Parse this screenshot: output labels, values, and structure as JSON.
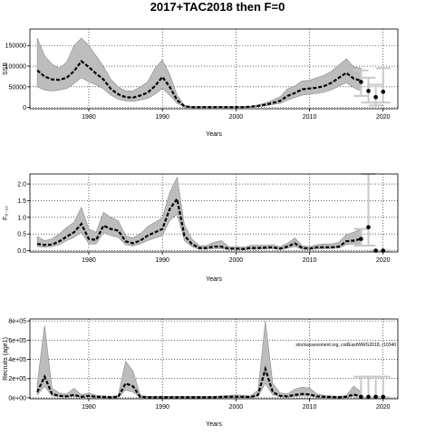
{
  "title": "2017+TAC2018 then F=0",
  "chart_data": [
    {
      "type": "line",
      "xlabel": "Years",
      "ylabel": "SSB",
      "xlim": [
        1972,
        2022
      ],
      "ylim": [
        -3000,
        190000
      ],
      "xticks": [
        1980,
        1990,
        2000,
        2010,
        2020
      ],
      "yticks": [
        0,
        50000,
        100000,
        150000
      ],
      "ytick_labels": [
        "0",
        "50000",
        "100000",
        "150000"
      ],
      "grid": true,
      "x": [
        1973,
        1974,
        1975,
        1976,
        1977,
        1978,
        1979,
        1980,
        1981,
        1982,
        1983,
        1984,
        1985,
        1986,
        1987,
        1988,
        1989,
        1990,
        1991,
        1992,
        1993,
        1994,
        1995,
        1996,
        1997,
        1998,
        1999,
        2000,
        2001,
        2002,
        2003,
        2004,
        2005,
        2006,
        2007,
        2008,
        2009,
        2010,
        2011,
        2012,
        2013,
        2014,
        2015,
        2016,
        2017
      ],
      "y": [
        90000,
        75000,
        68000,
        67000,
        72000,
        88000,
        112000,
        98000,
        82000,
        68000,
        45000,
        32000,
        25000,
        24000,
        29000,
        36000,
        52000,
        74000,
        50000,
        18000,
        3000,
        1000,
        1000,
        1000,
        1000,
        1000,
        1000,
        1000,
        1000,
        2000,
        4000,
        7000,
        11000,
        16000,
        28000,
        35000,
        44000,
        46000,
        48000,
        52000,
        60000,
        72000,
        84000,
        70000,
        65000
      ],
      "lower": [
        50000,
        42000,
        40000,
        42000,
        46000,
        58000,
        72000,
        62000,
        55000,
        45000,
        30000,
        20000,
        16000,
        15000,
        18000,
        22000,
        32000,
        46000,
        30000,
        10000,
        1000,
        0,
        0,
        0,
        0,
        0,
        0,
        0,
        0,
        1000,
        2000,
        4000,
        7000,
        10000,
        18000,
        24000,
        30000,
        32000,
        34000,
        37000,
        43000,
        52000,
        60000,
        48000,
        40000
      ],
      "upper": [
        168000,
        125000,
        105000,
        95000,
        110000,
        150000,
        168000,
        150000,
        125000,
        100000,
        68000,
        50000,
        40000,
        40000,
        50000,
        62000,
        95000,
        115000,
        80000,
        30000,
        5000,
        2000,
        2000,
        2000,
        2000,
        2000,
        2000,
        2000,
        2000,
        3000,
        6000,
        11000,
        18000,
        26000,
        45000,
        52000,
        64000,
        66000,
        72000,
        78000,
        88000,
        103000,
        118000,
        98000,
        95000
      ],
      "projection": {
        "x": [
          2017,
          2018,
          2019,
          2020
        ],
        "y": [
          62000,
          40000,
          25000,
          38000
        ],
        "lower": [
          28000,
          12000,
          5000,
          12000
        ],
        "upper": [
          90000,
          72000,
          55000,
          95000
        ]
      }
    },
    {
      "type": "line",
      "xlabel": "Years",
      "ylabel": "F₅₋₁₀",
      "xlim": [
        1972,
        2022
      ],
      "ylim": [
        -0.04,
        2.3
      ],
      "xticks": [
        1980,
        1990,
        2000,
        2010,
        2020
      ],
      "yticks": [
        0,
        0.5,
        1.0,
        1.5,
        2.0
      ],
      "ytick_labels": [
        "0.0",
        "0.5",
        "1.0",
        "1.5",
        "2.0"
      ],
      "grid": true,
      "x": [
        1973,
        1974,
        1975,
        1976,
        1977,
        1978,
        1979,
        1980,
        1981,
        1982,
        1983,
        1984,
        1985,
        1986,
        1987,
        1988,
        1989,
        1990,
        1991,
        1992,
        1993,
        1994,
        1995,
        1996,
        1997,
        1998,
        1999,
        2000,
        2001,
        2002,
        2003,
        2004,
        2005,
        2006,
        2007,
        2008,
        2009,
        2010,
        2011,
        2012,
        2013,
        2014,
        2015,
        2016,
        2017
      ],
      "y": [
        0.2,
        0.17,
        0.18,
        0.28,
        0.42,
        0.55,
        0.8,
        0.35,
        0.32,
        0.75,
        0.65,
        0.6,
        0.28,
        0.22,
        0.3,
        0.45,
        0.55,
        0.65,
        1.25,
        1.55,
        0.45,
        0.2,
        0.08,
        0.08,
        0.12,
        0.12,
        0.06,
        0.06,
        0.05,
        0.08,
        0.08,
        0.09,
        0.1,
        0.06,
        0.12,
        0.22,
        0.08,
        0.06,
        0.1,
        0.1,
        0.1,
        0.12,
        0.28,
        0.3,
        0.35
      ],
      "lower": [
        0.12,
        0.1,
        0.12,
        0.18,
        0.3,
        0.4,
        0.55,
        0.2,
        0.2,
        0.55,
        0.45,
        0.4,
        0.18,
        0.14,
        0.2,
        0.3,
        0.38,
        0.45,
        0.9,
        1.1,
        0.3,
        0.12,
        0.04,
        0.04,
        0.06,
        0.06,
        0.03,
        0.03,
        0.02,
        0.04,
        0.04,
        0.05,
        0.06,
        0.03,
        0.07,
        0.12,
        0.04,
        0.03,
        0.05,
        0.06,
        0.06,
        0.08,
        0.18,
        0.2,
        0.2
      ],
      "upper": [
        0.42,
        0.3,
        0.35,
        0.5,
        0.7,
        0.85,
        1.3,
        0.65,
        0.55,
        1.15,
        1.0,
        0.9,
        0.45,
        0.38,
        0.5,
        0.72,
        0.85,
        0.98,
        1.75,
        2.2,
        0.78,
        0.35,
        0.15,
        0.15,
        0.25,
        0.3,
        0.12,
        0.12,
        0.1,
        0.16,
        0.16,
        0.16,
        0.18,
        0.12,
        0.22,
        0.38,
        0.15,
        0.12,
        0.18,
        0.2,
        0.2,
        0.25,
        0.48,
        0.55,
        0.65
      ],
      "projection": {
        "x": [
          2017,
          2018,
          2019,
          2020
        ],
        "y": [
          0.35,
          0.7,
          0.0,
          0.0
        ],
        "lower": [
          0.15,
          0.15,
          0.0,
          0.0
        ],
        "upper": [
          0.65,
          2.3,
          0.0,
          0.0
        ]
      }
    },
    {
      "type": "line",
      "xlabel": "Years",
      "ylabel": "Recruits (age1)",
      "xlim": [
        1972,
        2022
      ],
      "ylim": [
        -10000,
        820000
      ],
      "xticks": [
        1980,
        1990,
        2000,
        2010,
        2020
      ],
      "yticks": [
        0,
        200000,
        400000,
        600000,
        800000
      ],
      "ytick_labels": [
        "0e+00",
        "2e+05",
        "4e+05",
        "6e+05",
        "8e+05"
      ],
      "grid": true,
      "annotation": "stockassessment.org, codEastWWG2018, r10340",
      "x": [
        1973,
        1974,
        1975,
        1976,
        1977,
        1978,
        1979,
        1980,
        1981,
        1982,
        1983,
        1984,
        1985,
        1986,
        1987,
        1988,
        1989,
        1990,
        1991,
        1992,
        1993,
        1994,
        1995,
        1996,
        1997,
        1998,
        1999,
        2000,
        2001,
        2002,
        2003,
        2004,
        2005,
        2006,
        2007,
        2008,
        2009,
        2010,
        2011,
        2012,
        2013,
        2014,
        2015,
        2016,
        2017
      ],
      "y": [
        60000,
        220000,
        40000,
        20000,
        15000,
        30000,
        10000,
        20000,
        10000,
        8000,
        5000,
        8000,
        150000,
        120000,
        10000,
        5000,
        5000,
        5000,
        5000,
        5000,
        5000,
        5000,
        5000,
        5000,
        5000,
        8000,
        10000,
        12000,
        10000,
        8000,
        30000,
        300000,
        60000,
        20000,
        15000,
        30000,
        40000,
        35000,
        15000,
        10000,
        8000,
        5000,
        10000,
        35000,
        10000
      ],
      "lower": [
        30000,
        120000,
        20000,
        10000,
        8000,
        15000,
        5000,
        10000,
        5000,
        4000,
        2000,
        4000,
        80000,
        60000,
        5000,
        2000,
        2000,
        2000,
        2000,
        2000,
        2000,
        2000,
        2000,
        2000,
        2000,
        4000,
        5000,
        6000,
        5000,
        4000,
        15000,
        150000,
        30000,
        10000,
        8000,
        15000,
        20000,
        18000,
        8000,
        5000,
        4000,
        2000,
        5000,
        15000,
        5000
      ],
      "upper": [
        150000,
        750000,
        100000,
        50000,
        40000,
        100000,
        30000,
        50000,
        25000,
        20000,
        15000,
        25000,
        380000,
        280000,
        25000,
        15000,
        15000,
        15000,
        15000,
        15000,
        15000,
        15000,
        15000,
        15000,
        15000,
        20000,
        25000,
        30000,
        25000,
        20000,
        80000,
        800000,
        150000,
        50000,
        40000,
        90000,
        110000,
        100000,
        40000,
        25000,
        20000,
        15000,
        25000,
        120000,
        60000
      ],
      "projection": {
        "x": [
          2017,
          2018,
          2019,
          2020
        ],
        "y": [
          10000,
          10000,
          10000,
          10000
        ],
        "lower": [
          5000,
          5000,
          5000,
          5000
        ],
        "upper": [
          220000,
          220000,
          220000,
          220000
        ]
      }
    }
  ]
}
